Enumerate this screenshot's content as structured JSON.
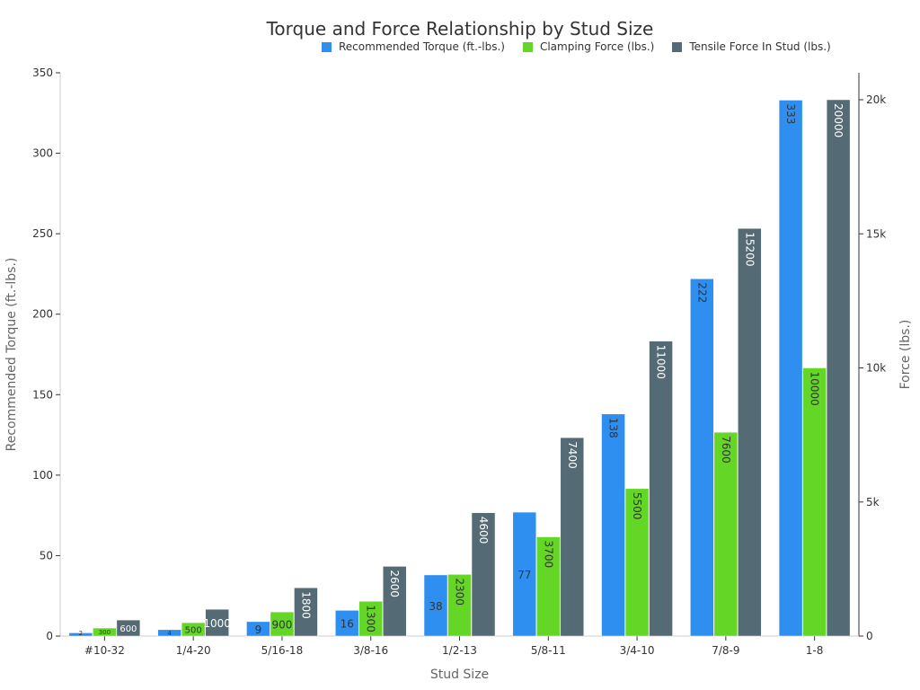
{
  "chart_data": {
    "type": "bar",
    "title": "Torque and Force Relationship by Stud Size",
    "xlabel": "Stud Size",
    "ylabel": "Recommended Torque (ft.-lbs.)",
    "y2label": "Force (lbs.)",
    "ylim": [
      0,
      350
    ],
    "y2lim": [
      0,
      21000
    ],
    "yticks": [
      0,
      50,
      100,
      150,
      200,
      250,
      300,
      350
    ],
    "y2ticks": [
      0,
      5000,
      10000,
      15000,
      20000
    ],
    "y2ticklabels": [
      "0",
      "5k",
      "10k",
      "15k",
      "20k"
    ],
    "grid": false,
    "legend": "top-right",
    "categories": [
      "#10-32",
      "1/4-20",
      "5/16-18",
      "3/8-16",
      "1/2-13",
      "5/8-11",
      "3/4-10",
      "7/8-9",
      "1-8"
    ],
    "series": [
      {
        "name": "Recommended Torque (ft.-lbs.)",
        "axis": "left",
        "color": "#2f8ff0",
        "values": [
          2,
          4,
          9,
          16,
          38,
          77,
          138,
          222,
          333
        ]
      },
      {
        "name": "Clamping Force (lbs.)",
        "axis": "right",
        "color": "#63d626",
        "values": [
          300,
          500,
          900,
          1300,
          2300,
          3700,
          5500,
          7600,
          10000
        ]
      },
      {
        "name": "Tensile Force In Stud (lbs.)",
        "axis": "right",
        "color": "#546a75",
        "values": [
          600,
          1000,
          1800,
          2600,
          4600,
          7400,
          11000,
          15200,
          20000
        ]
      }
    ]
  }
}
